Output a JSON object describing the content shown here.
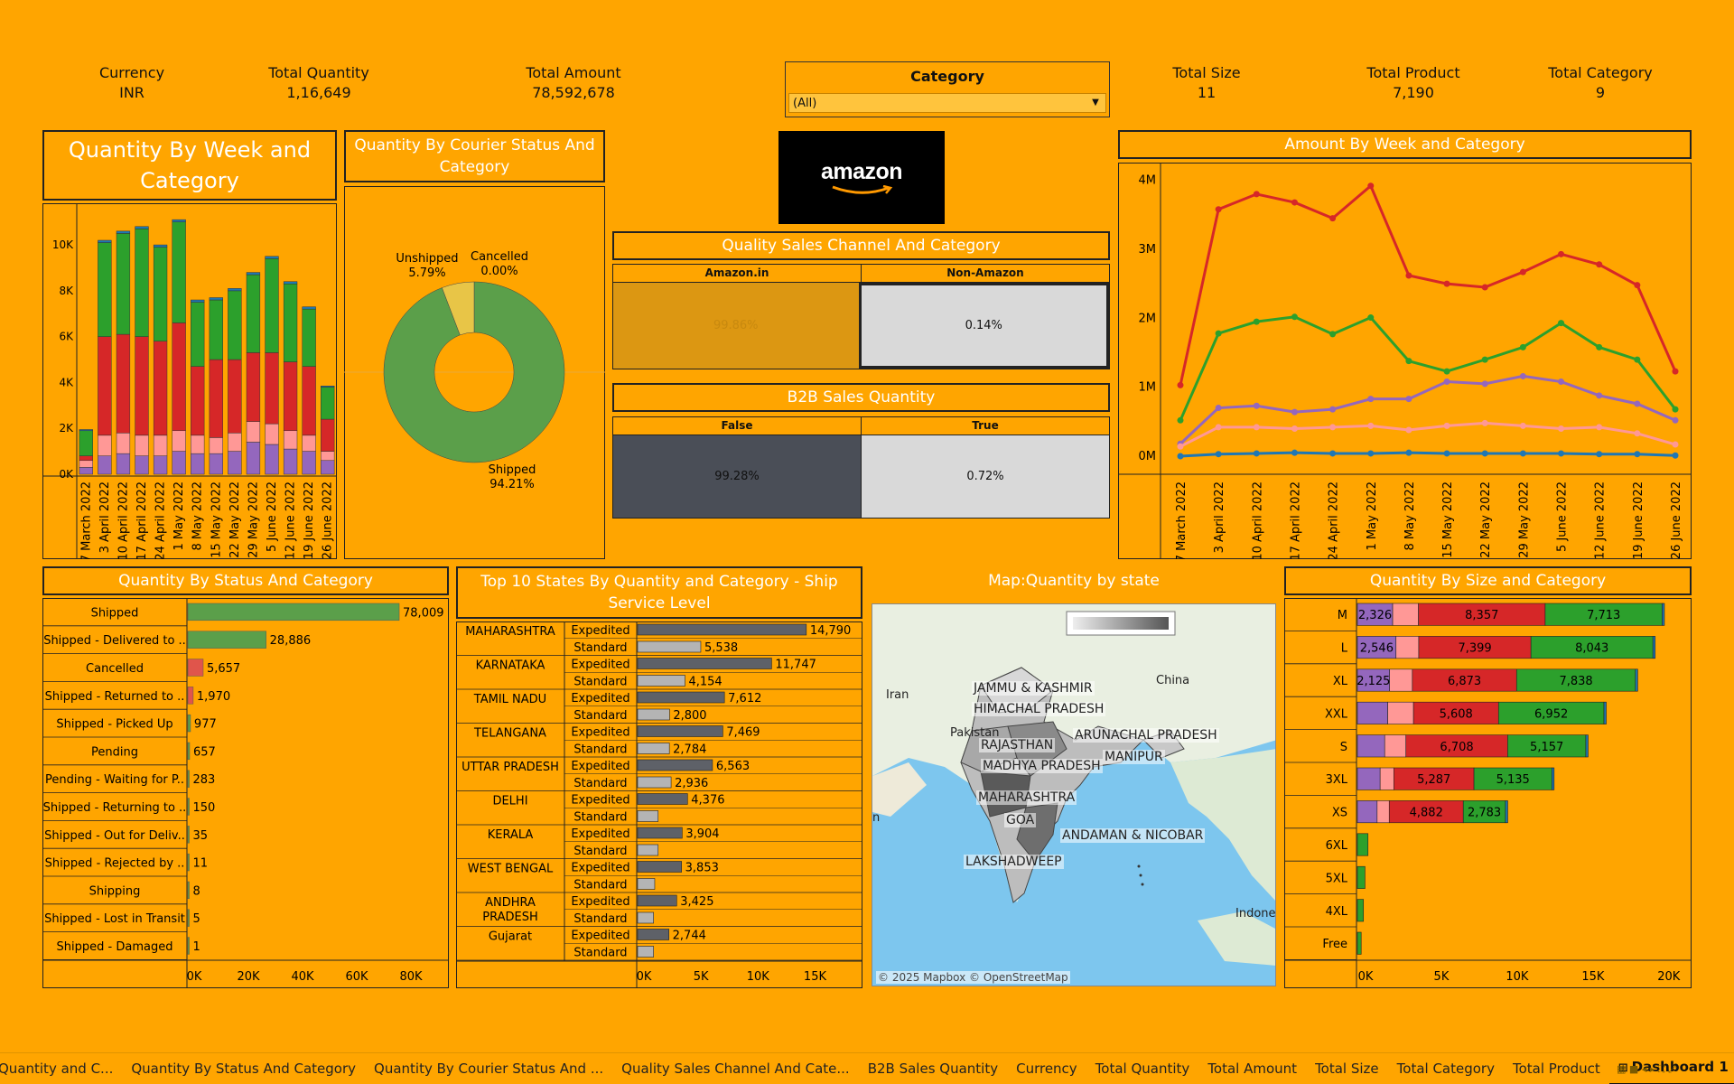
{
  "kpis": {
    "currency": {
      "label": "Currency",
      "value": "INR"
    },
    "total_quantity": {
      "label": "Total Quantity",
      "value": "1,16,649"
    },
    "total_amount": {
      "label": "Total Amount",
      "value": "78,592,678"
    },
    "total_size": {
      "label": "Total Size",
      "value": "11"
    },
    "total_product": {
      "label": "Total Product",
      "value": "7,190"
    },
    "total_category": {
      "label": "Total Category",
      "value": "9"
    }
  },
  "category_filter": {
    "title": "Category",
    "selected": "(All)"
  },
  "logo": {
    "text": "amazon"
  },
  "colors": {
    "background": "#FFA500",
    "red": "#D62728",
    "green": "#2CA02C",
    "purple": "#9467BD",
    "pink": "#FF9896",
    "blue": "#1F77B4",
    "title_text": "#FFFFFF"
  },
  "titles": {
    "qty_week": "Quantity By Week and Category",
    "courier": "Quantity By Courier Status And Category",
    "sales_channel": "Quality Sales Channel And Category",
    "b2b": "B2B Sales Quantity",
    "amount_week": "Amount By Week and  Category",
    "status": "Quantity By Status And Category",
    "top_states": "Top 10 States By Quantity and Category - Ship Service Level",
    "map": "Map:Quantity by state",
    "size": "Quantity By Size  and  Category"
  },
  "sales_channel": {
    "headers": [
      "Amazon.in",
      "Non-Amazon"
    ],
    "values": [
      "99.86%",
      "0.14%"
    ]
  },
  "b2b": {
    "headers": [
      "False",
      "True"
    ],
    "values": [
      "99.28%",
      "0.72%"
    ]
  },
  "map": {
    "attribution": "© 2025 Mapbox © OpenStreetMap",
    "countries": [
      "Iran",
      "Pakistan",
      "China",
      "Indones",
      "n"
    ],
    "states": [
      "JAMMU & KASHMIR",
      "HIMACHAL PRADESH",
      "RAJASTHAN",
      "MADHYA PRADESH",
      "ARUNACHAL PRADESH",
      "MANIPUR",
      "MAHARASHTRA",
      "GOA",
      "ANDAMAN & NICOBAR",
      "LAKSHADWEEP"
    ]
  },
  "tabs": [
    "Quantity and C...",
    "Quantity By Status And Category",
    "Quantity By Courier Status And ...",
    "Quality Sales Channel And Cate...",
    "B2B Sales Quantity",
    "Currency",
    "Total Quantity",
    "Total Amount",
    "Total Size",
    "Total Category",
    "Total Product",
    "Dashboard 1"
  ],
  "chart_data": [
    {
      "id": "qty_week",
      "type": "bar",
      "stacked": true,
      "title": "Quantity By Week and Category",
      "categories": [
        "27 March 2022",
        "3 April 2022",
        "10 April 2022",
        "17 April 2022",
        "24 April 2022",
        "1 May 2022",
        "8 May 2022",
        "15 May 2022",
        "22 May 2022",
        "29 May 2022",
        "5 June 2022",
        "12 June 2022",
        "19 June 2022",
        "26 June 2022"
      ],
      "series": [
        {
          "values": [
            300,
            800,
            900,
            800,
            800,
            1000,
            900,
            900,
            1000,
            1400,
            1300,
            1100,
            1000,
            600
          ],
          "color": "#9467BD"
        },
        {
          "values": [
            300,
            900,
            900,
            900,
            900,
            900,
            800,
            700,
            800,
            900,
            900,
            800,
            700,
            400
          ],
          "color": "#FF9896"
        },
        {
          "values": [
            200,
            4300,
            4300,
            4300,
            4100,
            4700,
            3000,
            3400,
            3200,
            3000,
            3100,
            3000,
            3000,
            1400
          ],
          "color": "#D62728"
        },
        {
          "values": [
            1100,
            4100,
            4400,
            4700,
            4100,
            4400,
            2800,
            2600,
            3000,
            3400,
            4100,
            3400,
            2500,
            1400
          ],
          "color": "#2CA02C"
        },
        {
          "values": [
            50,
            100,
            100,
            100,
            100,
            100,
            100,
            100,
            100,
            100,
            100,
            100,
            100,
            50
          ],
          "color": "#1F77B4"
        }
      ],
      "ylim": [
        0,
        11500
      ],
      "yticks": [
        "0K",
        "2K",
        "4K",
        "6K",
        "8K",
        "10K"
      ]
    },
    {
      "id": "courier",
      "type": "pie",
      "donut": true,
      "slices": [
        {
          "label": "Shipped",
          "pct": "94.21%",
          "value": 94.21,
          "color": "#5B9F4A"
        },
        {
          "label": "Unshipped",
          "pct": "5.79%",
          "value": 5.79,
          "color": "#E8C547"
        },
        {
          "label": "Cancelled",
          "pct": "0.00%",
          "value": 0.0,
          "color": "#D62728"
        }
      ]
    },
    {
      "id": "amount_week",
      "type": "line",
      "categories": [
        "27 March 2022",
        "3 April 2022",
        "10 April 2022",
        "17 April 2022",
        "24 April 2022",
        "1 May 2022",
        "8 May 2022",
        "15 May 2022",
        "22 May 2022",
        "29 May 2022",
        "5 June 2022",
        "12 June 2022",
        "19 June 2022",
        "26 June 2022"
      ],
      "series": [
        {
          "values": [
            1.03,
            3.58,
            3.8,
            3.68,
            3.45,
            3.92,
            2.62,
            2.5,
            2.45,
            2.67,
            2.93,
            2.78,
            2.48,
            1.23
          ],
          "color": "#D62728"
        },
        {
          "values": [
            0.52,
            1.78,
            1.95,
            2.02,
            1.77,
            2.01,
            1.38,
            1.23,
            1.4,
            1.58,
            1.93,
            1.58,
            1.4,
            0.68
          ],
          "color": "#2CA02C"
        },
        {
          "values": [
            0.18,
            0.7,
            0.73,
            0.64,
            0.68,
            0.83,
            0.83,
            1.08,
            1.05,
            1.16,
            1.08,
            0.88,
            0.76,
            0.52
          ],
          "color": "#9467BD"
        },
        {
          "values": [
            0.14,
            0.42,
            0.42,
            0.4,
            0.42,
            0.44,
            0.38,
            0.44,
            0.48,
            0.44,
            0.4,
            0.42,
            0.33,
            0.17
          ],
          "color": "#FF9896"
        },
        {
          "values": [
            0.0,
            0.03,
            0.04,
            0.05,
            0.04,
            0.04,
            0.05,
            0.04,
            0.04,
            0.04,
            0.04,
            0.03,
            0.03,
            0.01
          ],
          "color": "#1F77B4"
        }
      ],
      "ylim": [
        0,
        4.1
      ],
      "yticks": [
        "0M",
        "1M",
        "2M",
        "3M",
        "4M"
      ]
    },
    {
      "id": "status",
      "type": "bar",
      "orientation": "horizontal",
      "categories": [
        "Shipped",
        "Shipped - Delivered to ..",
        "Cancelled",
        "Shipped - Returned to ..",
        "Shipped - Picked Up",
        "Pending",
        "Pending - Waiting for P..",
        "Shipped - Returning to ..",
        "Shipped - Out for Deliv..",
        "Shipped - Rejected by ..",
        "Shipping",
        "Shipped - Lost in Transit",
        "Shipped - Damaged"
      ],
      "values": [
        78009,
        28886,
        5657,
        1970,
        977,
        657,
        283,
        150,
        35,
        11,
        8,
        5,
        1
      ],
      "labels": [
        "78,009",
        "28,886",
        "5,657",
        "1,970",
        "977",
        "657",
        "283",
        "150",
        "35",
        "11",
        "8",
        "5",
        "1"
      ],
      "colors": [
        "#5B9F4A",
        "#5B9F4A",
        "#E0554B",
        "#E0554B",
        "#5B9F4A",
        "#5B9F4A",
        "#5B9F4A",
        "#5B9F4A",
        "#5B9F4A",
        "#5B9F4A",
        "#5B9F4A",
        "#5B9F4A",
        "#5B9F4A"
      ],
      "xlim": [
        0,
        90000
      ],
      "xticks": [
        "0K",
        "20K",
        "40K",
        "60K",
        "80K"
      ]
    },
    {
      "id": "top_states",
      "type": "bar",
      "orientation": "horizontal",
      "states": [
        {
          "name": "MAHARASHTRA",
          "expedited": 14790,
          "standard": 5538,
          "exp_label": "14,790",
          "std_label": "5,538"
        },
        {
          "name": "KARNATAKA",
          "expedited": 11747,
          "standard": 4154,
          "exp_label": "11,747",
          "std_label": "4,154"
        },
        {
          "name": "TAMIL NADU",
          "expedited": 7612,
          "standard": 2800,
          "exp_label": "7,612",
          "std_label": "2,800"
        },
        {
          "name": "TELANGANA",
          "expedited": 7469,
          "standard": 2784,
          "exp_label": "7,469",
          "std_label": "2,784"
        },
        {
          "name": "UTTAR PRADESH",
          "expedited": 6563,
          "standard": 2936,
          "exp_label": "6,563",
          "std_label": "2,936"
        },
        {
          "name": "DELHI",
          "expedited": 4376,
          "standard": 1800,
          "exp_label": "4,376",
          "std_label": ""
        },
        {
          "name": "KERALA",
          "expedited": 3904,
          "standard": 1800,
          "exp_label": "3,904",
          "std_label": ""
        },
        {
          "name": "WEST BENGAL",
          "expedited": 3853,
          "standard": 1500,
          "exp_label": "3,853",
          "std_label": ""
        },
        {
          "name": "ANDHRA PRADESH",
          "expedited": 3425,
          "standard": 1400,
          "exp_label": "3,425",
          "std_label": ""
        },
        {
          "name": "Gujarat",
          "expedited": 2744,
          "standard": 1400,
          "exp_label": "2,744",
          "std_label": ""
        }
      ],
      "levels": [
        "Expedited",
        "Standard"
      ],
      "xlim": [
        0,
        19000
      ],
      "xticks": [
        "0K",
        "5K",
        "10K",
        "15K"
      ]
    },
    {
      "id": "size",
      "type": "bar",
      "orientation": "horizontal",
      "stacked": true,
      "categories": [
        "M",
        "L",
        "XL",
        "XXL",
        "S",
        "3XL",
        "XS",
        "6XL",
        "5XL",
        "4XL",
        "Free"
      ],
      "series": [
        {
          "values": [
            2326,
            2546,
            2125,
            2000,
            1800,
            1500,
            1300,
            0,
            0,
            0,
            0
          ],
          "labels": [
            "2,326",
            "2,546",
            "2,125",
            "",
            "",
            "",
            "",
            "",
            "",
            "",
            ""
          ],
          "color": "#9467BD"
        },
        {
          "values": [
            1700,
            1500,
            1500,
            1700,
            1400,
            900,
            800,
            0,
            0,
            0,
            0
          ],
          "labels": [
            "",
            "",
            "",
            "",
            "",
            "",
            "",
            "",
            "",
            "",
            ""
          ],
          "color": "#FF9896"
        },
        {
          "values": [
            8357,
            7399,
            6873,
            5608,
            6708,
            5287,
            4882,
            0,
            0,
            0,
            0
          ],
          "labels": [
            "8,357",
            "7,399",
            "6,873",
            "5,608",
            "6,708",
            "5,287",
            "4,882",
            "",
            "",
            "",
            ""
          ],
          "color": "#D62728"
        },
        {
          "values": [
            7713,
            8043,
            7838,
            6952,
            5157,
            5135,
            2783,
            700,
            500,
            400,
            250
          ],
          "labels": [
            "7,713",
            "8,043",
            "7,838",
            "6,952",
            "5,157",
            "5,135",
            "2,783",
            "",
            "",
            "",
            ""
          ],
          "color": "#2CA02C"
        },
        {
          "values": [
            150,
            150,
            150,
            150,
            150,
            150,
            150,
            0,
            0,
            0,
            0
          ],
          "labels": [
            "",
            "",
            "",
            "",
            "",
            "",
            "",
            "",
            "",
            "",
            ""
          ],
          "color": "#1F77B4"
        }
      ],
      "xlim": [
        0,
        21500
      ],
      "xticks": [
        "0K",
        "5K",
        "10K",
        "15K",
        "20K"
      ]
    }
  ]
}
